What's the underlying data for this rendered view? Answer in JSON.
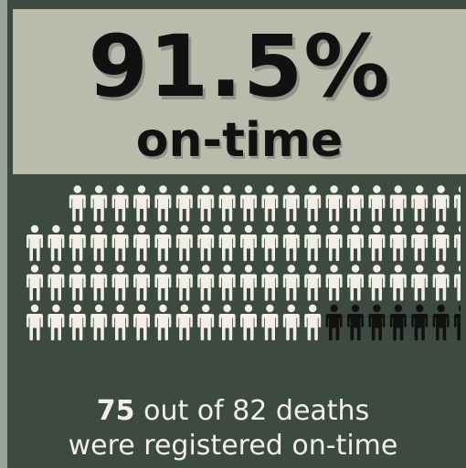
{
  "stat": {
    "percent": "91.5%",
    "label": "on-time"
  },
  "icons": {
    "total": 82,
    "highlighted": 75,
    "columns": 21,
    "highlight_color": "#f2efe6",
    "other_color": "#111111",
    "icon": "person-icon"
  },
  "caption": {
    "count": "75",
    "line1_rest": " out of 82 deaths",
    "line2": "were registered on-time"
  },
  "colors": {
    "background": "#3d4a40",
    "panel": "#b9bcac",
    "text_dark": "#111111",
    "text_light": "#f2efe6"
  }
}
